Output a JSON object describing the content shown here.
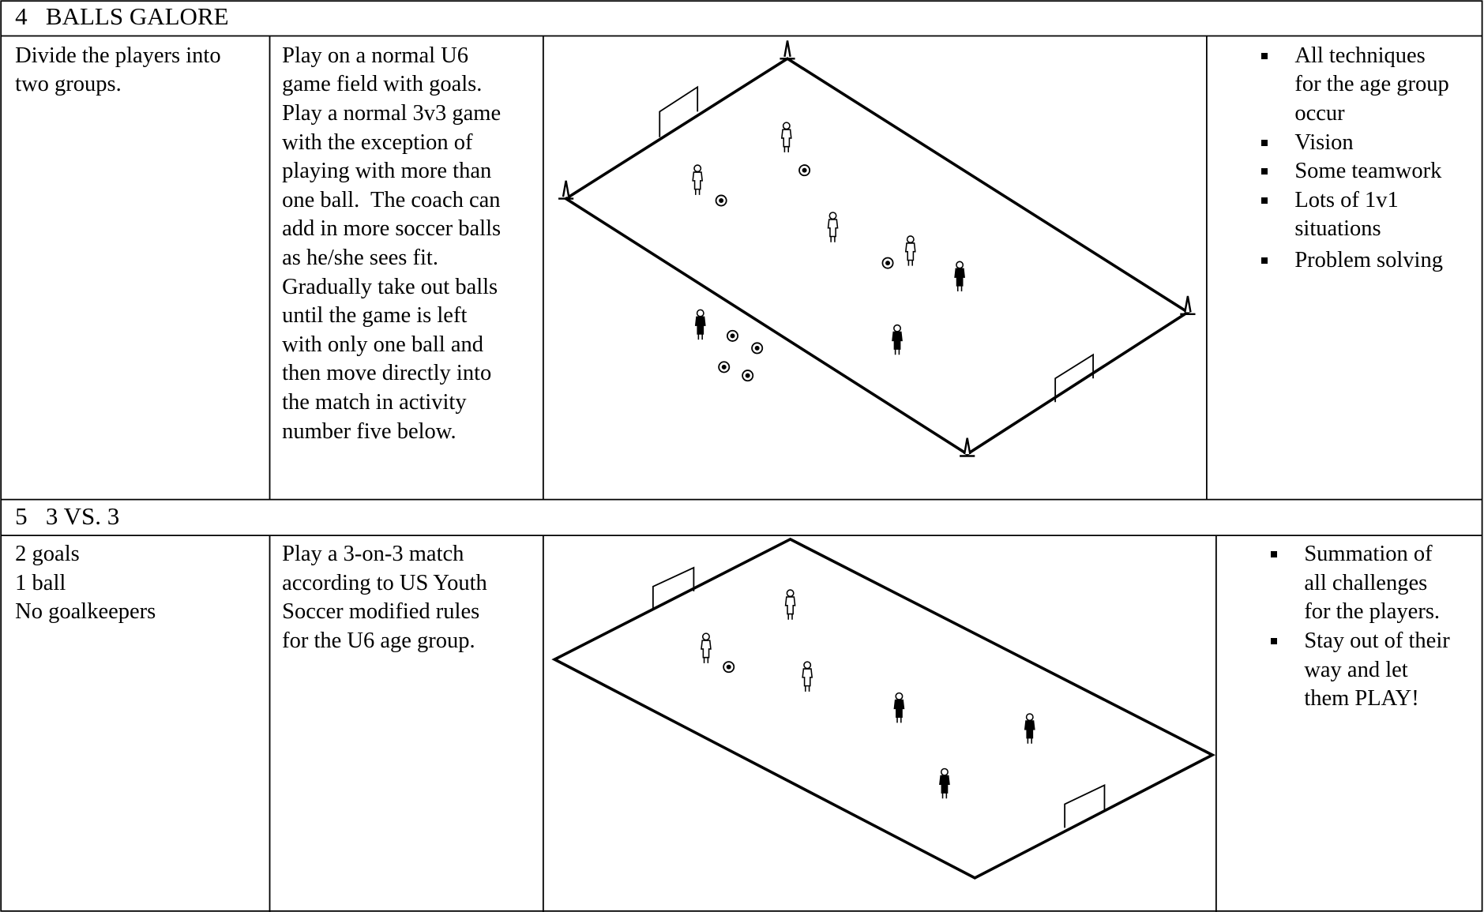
{
  "sections": [
    {
      "title": "4   BALLS GALORE",
      "setup": [
        "Divide the players into",
        "two groups."
      ],
      "description": [
        "Play on a normal U6",
        "game field with goals.",
        "Play a normal 3v3 game",
        "with the exception of",
        "playing with more than",
        "one ball.  The coach can",
        "add in more soccer balls",
        "as he/she sees fit.",
        "Gradually take out balls",
        "until the game is left",
        "with only one ball and",
        "then move directly into",
        "the match in activity",
        "number five below."
      ],
      "objectives": [
        [
          "All techniques",
          "for the age group",
          "occur"
        ],
        [
          "Vision"
        ],
        [
          "Some teamwork"
        ],
        [
          "Lots of 1v1",
          "situations"
        ],
        [
          "Problem solving"
        ]
      ]
    },
    {
      "title": "5   3 VS. 3",
      "setup": [
        "2 goals",
        "1 ball",
        "No goalkeepers"
      ],
      "description": [
        "Play a 3-on-3 match",
        "according to US Youth",
        "Soccer modified rules",
        "for the U6 age group."
      ],
      "objectives": [
        [
          "Summation of",
          "all challenges",
          "for the players."
        ],
        [
          "Stay out of their",
          "way and let",
          "them PLAY!"
        ]
      ]
    }
  ]
}
